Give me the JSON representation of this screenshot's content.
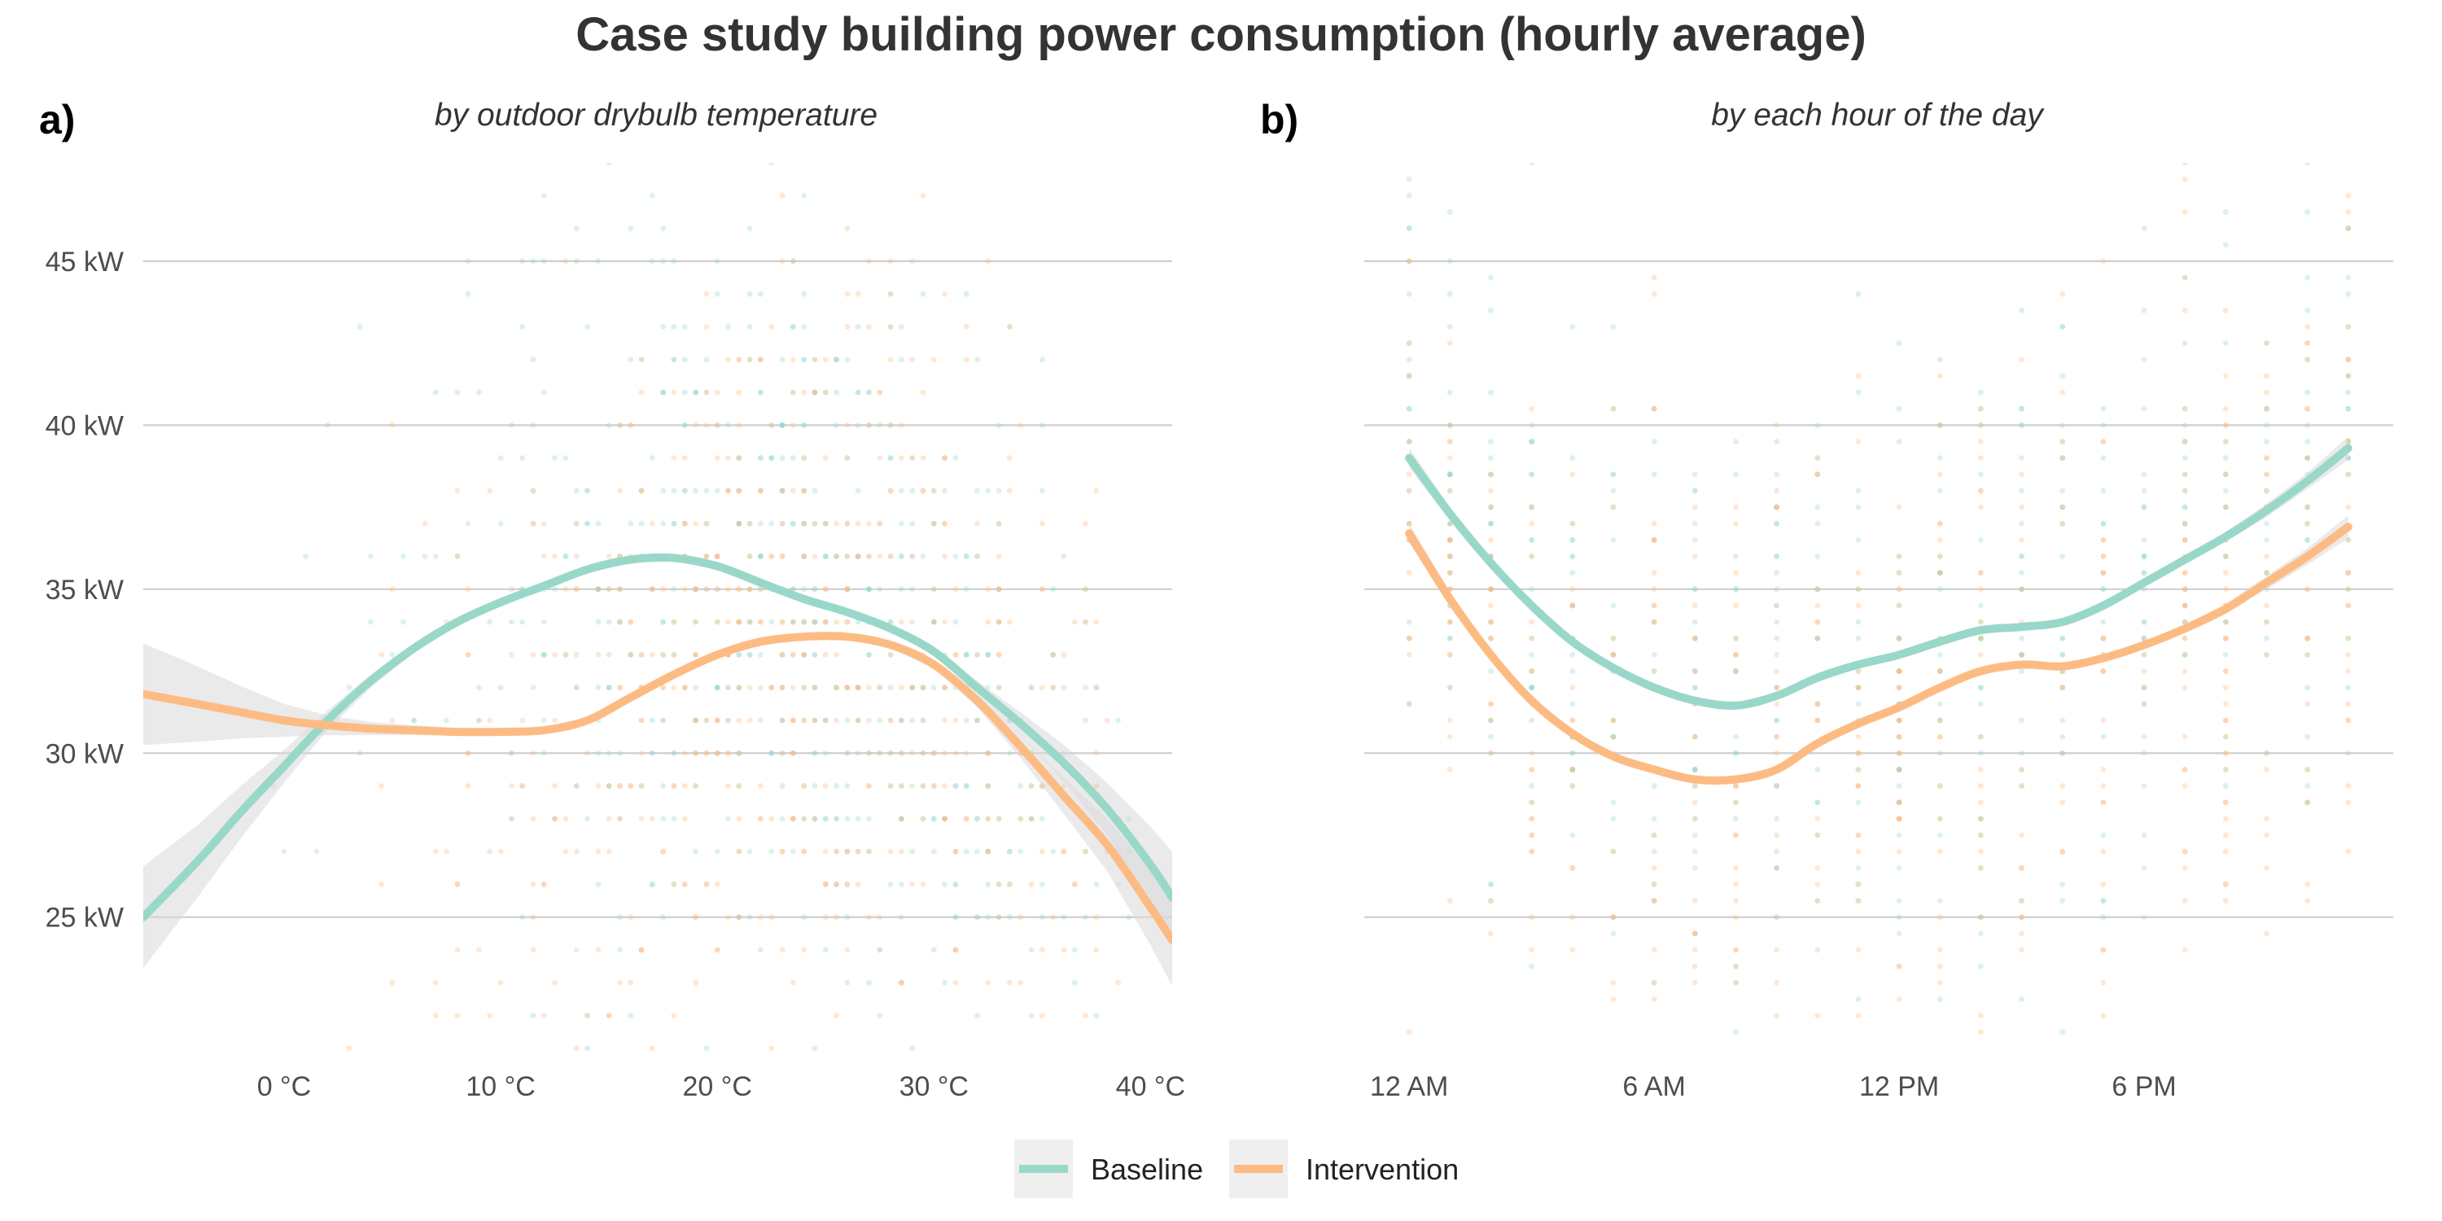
{
  "title": "Case study building power consumption (hourly average)",
  "colors": {
    "baseline": "#99d8c9",
    "intervention": "#fdbb84",
    "ribbon": "#d9d9d9",
    "grid": "#cfcfcf"
  },
  "legend": {
    "position": "bottom",
    "items": [
      {
        "label": "Baseline",
        "color": "#99d8c9"
      },
      {
        "label": "Intervention",
        "color": "#fdbb84"
      }
    ]
  },
  "chart_data": [
    {
      "panel_label": "a)",
      "type": "scatter",
      "subtitle": "by outdoor drybulb temperature",
      "xlabel": "",
      "ylabel": "",
      "xlim": [
        -6.5,
        41
      ],
      "ylim": [
        20.7,
        48
      ],
      "x_ticks": [
        0,
        10,
        20,
        30,
        40
      ],
      "x_tick_labels": [
        "0 °C",
        "10 °C",
        "20 °C",
        "30 °C",
        "40 °C"
      ],
      "y_ticks": [
        25,
        30,
        35,
        40,
        45
      ],
      "y_tick_labels": [
        "25 kW",
        "30 kW",
        "35 kW",
        "40 kW",
        "45 kW"
      ],
      "grid": "horizontal major",
      "series": [
        {
          "name": "Baseline",
          "smooth_x": [
            -6.5,
            -4,
            -2,
            0,
            2,
            4,
            6,
            8,
            10,
            12,
            14,
            16,
            18,
            20,
            22,
            24,
            26,
            28,
            30,
            32,
            34,
            36,
            38,
            40,
            41
          ],
          "smooth_y": [
            25.0,
            26.7,
            28.2,
            29.6,
            31.0,
            32.2,
            33.2,
            34.0,
            34.6,
            35.1,
            35.6,
            35.9,
            35.95,
            35.7,
            35.2,
            34.7,
            34.3,
            33.8,
            33.1,
            32.0,
            30.9,
            29.7,
            28.3,
            26.6,
            25.6
          ],
          "ribbon_halfwidth": [
            1.55,
            1.1,
            0.8,
            0.5,
            0.3,
            0.2,
            0.15,
            0.12,
            0.1,
            0.1,
            0.1,
            0.1,
            0.1,
            0.1,
            0.1,
            0.1,
            0.1,
            0.1,
            0.12,
            0.2,
            0.35,
            0.55,
            0.8,
            1.15,
            1.4
          ]
        },
        {
          "name": "Intervention",
          "smooth_x": [
            -6.5,
            -4,
            -2,
            0,
            2,
            4,
            6,
            8,
            10,
            12,
            14,
            16,
            18,
            20,
            22,
            24,
            26,
            28,
            30,
            32,
            34,
            36,
            38,
            40,
            41
          ],
          "smooth_y": [
            31.8,
            31.5,
            31.25,
            31.0,
            30.85,
            30.75,
            30.7,
            30.65,
            30.65,
            30.7,
            31.0,
            31.7,
            32.4,
            33.0,
            33.4,
            33.55,
            33.55,
            33.3,
            32.7,
            31.6,
            30.2,
            28.7,
            27.2,
            25.3,
            24.3
          ],
          "ribbon_halfwidth": [
            1.55,
            1.15,
            0.8,
            0.5,
            0.3,
            0.2,
            0.15,
            0.12,
            0.1,
            0.1,
            0.1,
            0.1,
            0.1,
            0.1,
            0.1,
            0.1,
            0.1,
            0.1,
            0.12,
            0.2,
            0.35,
            0.55,
            0.8,
            1.15,
            1.4
          ]
        }
      ]
    },
    {
      "panel_label": "b)",
      "type": "scatter",
      "subtitle": "by each hour of the day",
      "xlabel": "",
      "ylabel": "",
      "xlim": [
        -1.1,
        24.1
      ],
      "ylim": [
        20.7,
        48
      ],
      "x_ticks": [
        0,
        6,
        12,
        18
      ],
      "x_tick_labels": [
        "12 AM",
        "6 AM",
        "12 PM",
        "6 PM"
      ],
      "y_ticks": [
        25,
        30,
        35,
        40,
        45
      ],
      "grid": "horizontal major",
      "series": [
        {
          "name": "Baseline",
          "smooth_x": [
            0,
            1,
            2,
            3,
            4,
            5,
            6,
            7,
            8,
            9,
            10,
            11,
            12,
            13,
            14,
            15,
            16,
            17,
            18,
            19,
            20,
            21,
            22,
            23
          ],
          "smooth_y": [
            39.0,
            37.3,
            35.8,
            34.5,
            33.4,
            32.6,
            32.0,
            31.6,
            31.45,
            31.75,
            32.3,
            32.7,
            33.0,
            33.4,
            33.75,
            33.85,
            34.0,
            34.5,
            35.2,
            35.9,
            36.6,
            37.4,
            38.3,
            39.3
          ],
          "ribbon_halfwidth": [
            0.3,
            0.2,
            0.15,
            0.12,
            0.1,
            0.1,
            0.1,
            0.1,
            0.1,
            0.1,
            0.1,
            0.1,
            0.1,
            0.1,
            0.1,
            0.1,
            0.1,
            0.1,
            0.1,
            0.12,
            0.15,
            0.2,
            0.25,
            0.35
          ]
        },
        {
          "name": "Intervention",
          "smooth_x": [
            0,
            1,
            2,
            3,
            4,
            5,
            6,
            7,
            8,
            9,
            10,
            11,
            12,
            13,
            14,
            15,
            16,
            17,
            18,
            19,
            20,
            21,
            22,
            23
          ],
          "smooth_y": [
            36.7,
            34.7,
            33.0,
            31.6,
            30.6,
            29.9,
            29.5,
            29.2,
            29.2,
            29.5,
            30.3,
            30.9,
            31.4,
            32.0,
            32.5,
            32.7,
            32.65,
            32.9,
            33.3,
            33.8,
            34.4,
            35.2,
            36.0,
            36.9
          ],
          "ribbon_halfwidth": [
            0.3,
            0.2,
            0.15,
            0.12,
            0.1,
            0.1,
            0.1,
            0.1,
            0.1,
            0.1,
            0.1,
            0.1,
            0.1,
            0.1,
            0.1,
            0.1,
            0.1,
            0.1,
            0.1,
            0.12,
            0.15,
            0.2,
            0.25,
            0.35
          ]
        }
      ]
    }
  ]
}
